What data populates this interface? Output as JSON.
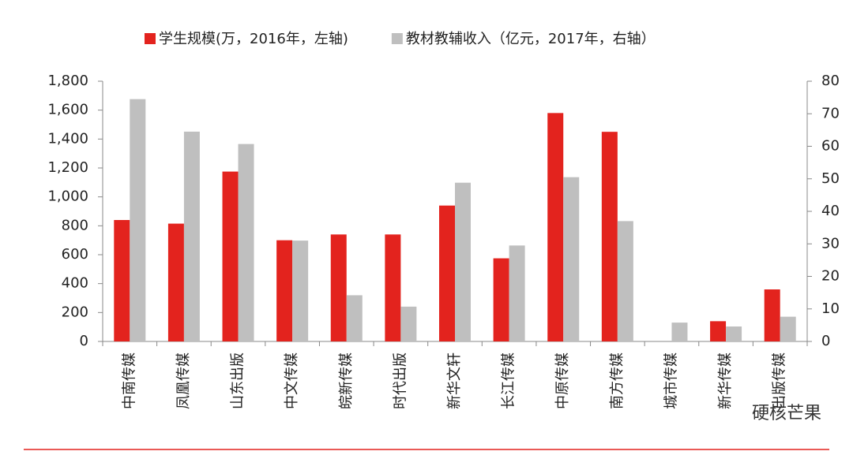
{
  "chart_data": {
    "type": "bar",
    "categories": [
      "中南传媒",
      "凤凰传媒",
      "山东出版",
      "中文传媒",
      "皖新传媒",
      "时代出版",
      "新华文轩",
      "长江传媒",
      "中原传媒",
      "南方传媒",
      "城市传媒",
      "新华传媒",
      "出版传媒"
    ],
    "series": [
      {
        "name": "学生规模(万，2016年，左轴)",
        "color": "#e3231e",
        "values": [
          840,
          815,
          1175,
          700,
          740,
          740,
          940,
          575,
          1580,
          1450,
          null,
          140,
          360
        ]
      },
      {
        "name": "教材教辅收入（亿元，2017年，右轴）",
        "color": "#bfbfbf",
        "axis": "y2",
        "values": [
          74.5,
          64.5,
          60.7,
          31,
          14.2,
          10.7,
          48.8,
          29.5,
          50.5,
          37,
          5.8,
          4.6,
          7.6
        ]
      }
    ],
    "ylim": [
      0,
      1800
    ],
    "yticks": [
      0,
      200,
      400,
      600,
      800,
      {
        "value": 1000,
        "label": "1,000"
      },
      {
        "value": 1200,
        "label": "1,200"
      },
      {
        "value": 1400,
        "label": "1,400"
      },
      {
        "value": 1600,
        "label": "1,600"
      },
      {
        "value": 1800,
        "label": "1,800"
      }
    ],
    "y2lim": [
      0,
      80
    ],
    "y2ticks": [
      0,
      10,
      20,
      30,
      40,
      50,
      60,
      70,
      80
    ],
    "grid": false,
    "legend": "top",
    "watermark": "硬核芒果"
  }
}
